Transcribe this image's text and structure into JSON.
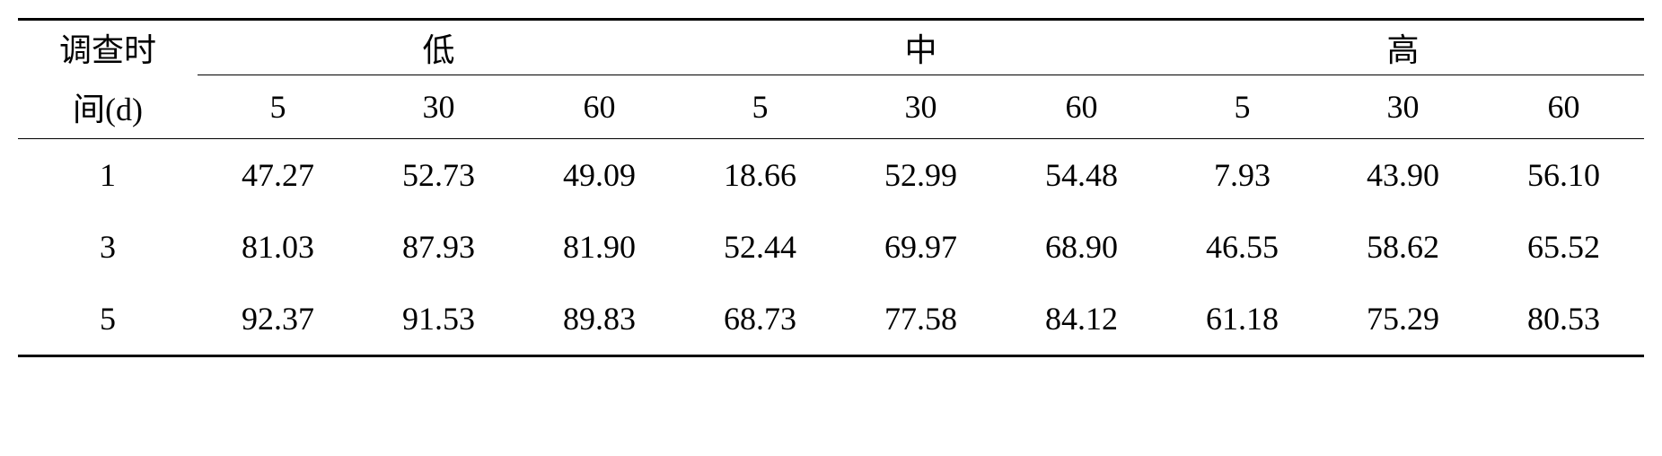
{
  "table": {
    "type": "table",
    "background_color": "#ffffff",
    "text_color": "#000000",
    "border_color": "#000000",
    "font_family_cn": "SimSun",
    "font_family_num": "Times New Roman",
    "header_fontsize": 36,
    "data_fontsize": 36,
    "row_header_line1": "调查时",
    "row_header_line2": "间(d)",
    "groups": [
      {
        "label": "低",
        "sub": [
          "5",
          "30",
          "60"
        ]
      },
      {
        "label": "中",
        "sub": [
          "5",
          "30",
          "60"
        ]
      },
      {
        "label": "高",
        "sub": [
          "5",
          "30",
          "60"
        ]
      }
    ],
    "rows": [
      {
        "id": "1",
        "values": [
          "47.27",
          "52.73",
          "49.09",
          "18.66",
          "52.99",
          "54.48",
          "7.93",
          "43.90",
          "56.10"
        ]
      },
      {
        "id": "3",
        "values": [
          "81.03",
          "87.93",
          "81.90",
          "52.44",
          "69.97",
          "68.90",
          "46.55",
          "58.62",
          "65.52"
        ]
      },
      {
        "id": "5",
        "values": [
          "92.37",
          "91.53",
          "89.83",
          "68.73",
          "77.58",
          "84.12",
          "61.18",
          "75.29",
          "80.53"
        ]
      }
    ],
    "col_widths": {
      "rowhead": 200,
      "data": 179
    },
    "border_widths": {
      "heavy": 3,
      "light": 1.5
    }
  }
}
